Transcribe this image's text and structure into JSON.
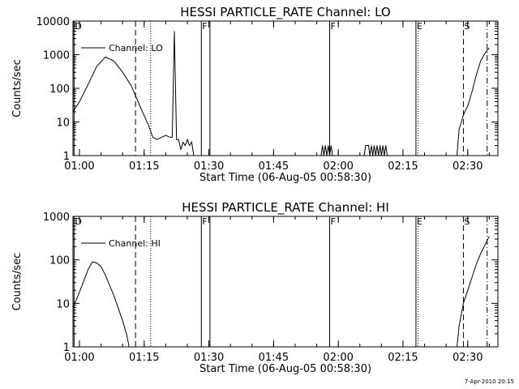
{
  "footer": {
    "stamp": "7-Apr-2010 20:15"
  },
  "chart_data": [
    {
      "type": "line",
      "title": "HESSI PARTICLE_RATE Channel: LO",
      "xlabel": "Start Time (06-Aug-05 00:58:30)",
      "ylabel": "Counts/sec",
      "yscale": "log",
      "ylim": [
        1,
        10000
      ],
      "xlim": [
        "00:58:30",
        "02:37:00"
      ],
      "x_ticks": [
        "01:00",
        "01:15",
        "01:30",
        "01:45",
        "02:00",
        "02:15",
        "02:30"
      ],
      "y_ticks": [
        "1",
        "10",
        "100",
        "1000",
        "10000"
      ],
      "legend": {
        "label": "Channel: LO",
        "position": "top-left"
      },
      "markers": [
        {
          "time": "00:58:45",
          "style": "solid",
          "label": "D"
        },
        {
          "time": "01:13:00",
          "style": "dashed",
          "label": ""
        },
        {
          "time": "01:16:30",
          "style": "dotted",
          "label": ""
        },
        {
          "time": "01:28:15",
          "style": "solid",
          "label": "F"
        },
        {
          "time": "01:30:15",
          "style": "solid",
          "label": ""
        },
        {
          "time": "01:58:00",
          "style": "solid",
          "label": "F"
        },
        {
          "time": "02:18:00",
          "style": "solid",
          "label": "E"
        },
        {
          "time": "02:18:30",
          "style": "dotted",
          "label": ""
        },
        {
          "time": "02:29:00",
          "style": "dashed",
          "label": "S"
        },
        {
          "time": "02:34:30",
          "style": "dashdot",
          "label": ""
        }
      ],
      "series": [
        {
          "name": "Channel: LO",
          "segments": [
            [
              [
                "00:58:30",
                20
              ],
              [
                "01:00:00",
                40
              ],
              [
                "01:02:00",
                130
              ],
              [
                "01:04:00",
                450
              ],
              [
                "01:06:00",
                850
              ],
              [
                "01:08:00",
                650
              ],
              [
                "01:10:00",
                300
              ],
              [
                "01:12:00",
                120
              ],
              [
                "01:14:00",
                30
              ],
              [
                "01:16:00",
                8
              ],
              [
                "01:17:00",
                3.5
              ],
              [
                "01:18:00",
                3
              ],
              [
                "01:19:00",
                3.5
              ],
              [
                "01:20:00",
                4
              ],
              [
                "01:21:00",
                3.5
              ],
              [
                "01:21:30",
                3.5
              ],
              [
                "01:22:00",
                5000
              ],
              [
                "01:22:30",
                3
              ],
              [
                "01:23:00",
                3
              ],
              [
                "01:23:30",
                1.5
              ],
              [
                "01:24:00",
                2.5
              ],
              [
                "01:24:30",
                2
              ],
              [
                "01:25:00",
                3
              ],
              [
                "01:25:30",
                2
              ],
              [
                "01:26:00",
                2.5
              ],
              [
                "01:26:30",
                1
              ]
            ],
            [
              [
                "01:56:00",
                1
              ],
              [
                "01:56:20",
                2
              ],
              [
                "01:56:40",
                1
              ],
              [
                "01:57:00",
                2
              ],
              [
                "01:57:20",
                1
              ],
              [
                "01:57:40",
                2
              ],
              [
                "01:58:00",
                1
              ],
              [
                "01:58:20",
                2
              ],
              [
                "01:58:40",
                1
              ]
            ],
            [
              [
                "02:06:00",
                1
              ],
              [
                "02:06:20",
                2
              ],
              [
                "02:07:00",
                2
              ],
              [
                "02:07:20",
                1
              ],
              [
                "02:07:40",
                2
              ],
              [
                "02:08:00",
                1
              ],
              [
                "02:08:20",
                2
              ],
              [
                "02:08:40",
                1
              ],
              [
                "02:09:00",
                2
              ],
              [
                "02:09:20",
                1
              ],
              [
                "02:09:40",
                2
              ],
              [
                "02:10:00",
                1
              ],
              [
                "02:10:20",
                2
              ],
              [
                "02:10:40",
                1
              ],
              [
                "02:11:00",
                2
              ],
              [
                "02:11:20",
                1
              ]
            ],
            [
              [
                "02:27:30",
                1
              ],
              [
                "02:28:00",
                6
              ],
              [
                "02:29:00",
                16
              ],
              [
                "02:30:00",
                30
              ],
              [
                "02:31:00",
                80
              ],
              [
                "02:32:00",
                250
              ],
              [
                "02:33:00",
                650
              ],
              [
                "02:34:00",
                1100
              ],
              [
                "02:35:00",
                1600
              ]
            ]
          ]
        }
      ]
    },
    {
      "type": "line",
      "title": "HESSI PARTICLE_RATE Channel: HI",
      "xlabel": "Start Time (06-Aug-05 00:58:30)",
      "ylabel": "Counts/sec",
      "yscale": "log",
      "ylim": [
        1,
        1000
      ],
      "xlim": [
        "00:58:30",
        "02:37:00"
      ],
      "x_ticks": [
        "01:00",
        "01:15",
        "01:30",
        "01:45",
        "02:00",
        "02:15",
        "02:30"
      ],
      "y_ticks": [
        "1",
        "10",
        "100",
        "1000"
      ],
      "legend": {
        "label": "Channel: HI",
        "position": "top-left"
      },
      "markers": [
        {
          "time": "00:58:45",
          "style": "solid",
          "label": "D"
        },
        {
          "time": "01:13:00",
          "style": "dashed",
          "label": ""
        },
        {
          "time": "01:16:30",
          "style": "dotted",
          "label": ""
        },
        {
          "time": "01:28:15",
          "style": "solid",
          "label": "F"
        },
        {
          "time": "01:30:15",
          "style": "solid",
          "label": ""
        },
        {
          "time": "01:58:00",
          "style": "solid",
          "label": "F"
        },
        {
          "time": "02:18:00",
          "style": "solid",
          "label": "E"
        },
        {
          "time": "02:18:30",
          "style": "dotted",
          "label": ""
        },
        {
          "time": "02:29:00",
          "style": "dashed",
          "label": "S"
        },
        {
          "time": "02:34:30",
          "style": "dashdot",
          "label": ""
        }
      ],
      "series": [
        {
          "name": "Channel: HI",
          "segments": [
            [
              [
                "00:58:30",
                8
              ],
              [
                "01:00:00",
                18
              ],
              [
                "01:02:00",
                60
              ],
              [
                "01:03:00",
                90
              ],
              [
                "01:04:00",
                85
              ],
              [
                "01:05:00",
                70
              ],
              [
                "01:06:00",
                45
              ],
              [
                "01:08:00",
                15
              ],
              [
                "01:10:00",
                4
              ],
              [
                "01:11:00",
                1.8
              ],
              [
                "01:11:30",
                1
              ]
            ],
            [
              [
                "02:27:30",
                1
              ],
              [
                "02:28:00",
                3
              ],
              [
                "02:29:00",
                10
              ],
              [
                "02:30:00",
                20
              ],
              [
                "02:31:00",
                40
              ],
              [
                "02:32:00",
                80
              ],
              [
                "02:33:00",
                140
              ],
              [
                "02:34:00",
                220
              ],
              [
                "02:35:00",
                350
              ]
            ]
          ]
        }
      ]
    }
  ]
}
